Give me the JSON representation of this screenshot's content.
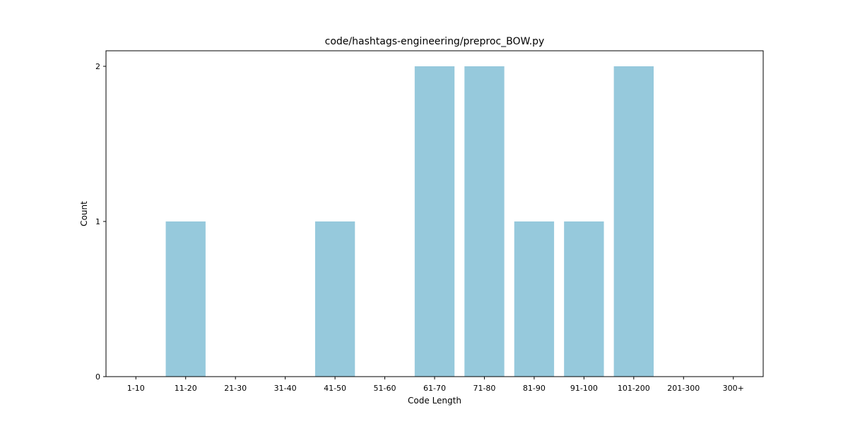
{
  "chart_data": {
    "type": "bar",
    "title": "code/hashtags-engineering/preproc_BOW.py",
    "xlabel": "Code Length",
    "ylabel": "Count",
    "categories": [
      "1-10",
      "11-20",
      "21-30",
      "31-40",
      "41-50",
      "51-60",
      "61-70",
      "71-80",
      "81-90",
      "91-100",
      "101-200",
      "201-300",
      "300+"
    ],
    "values": [
      0,
      1,
      0,
      0,
      1,
      0,
      2,
      2,
      1,
      1,
      2,
      0,
      0
    ],
    "ylim": [
      0,
      2.1
    ],
    "yticks": [
      "0",
      "1",
      "2"
    ],
    "grid": false,
    "bar_color": "#96c9dc"
  }
}
